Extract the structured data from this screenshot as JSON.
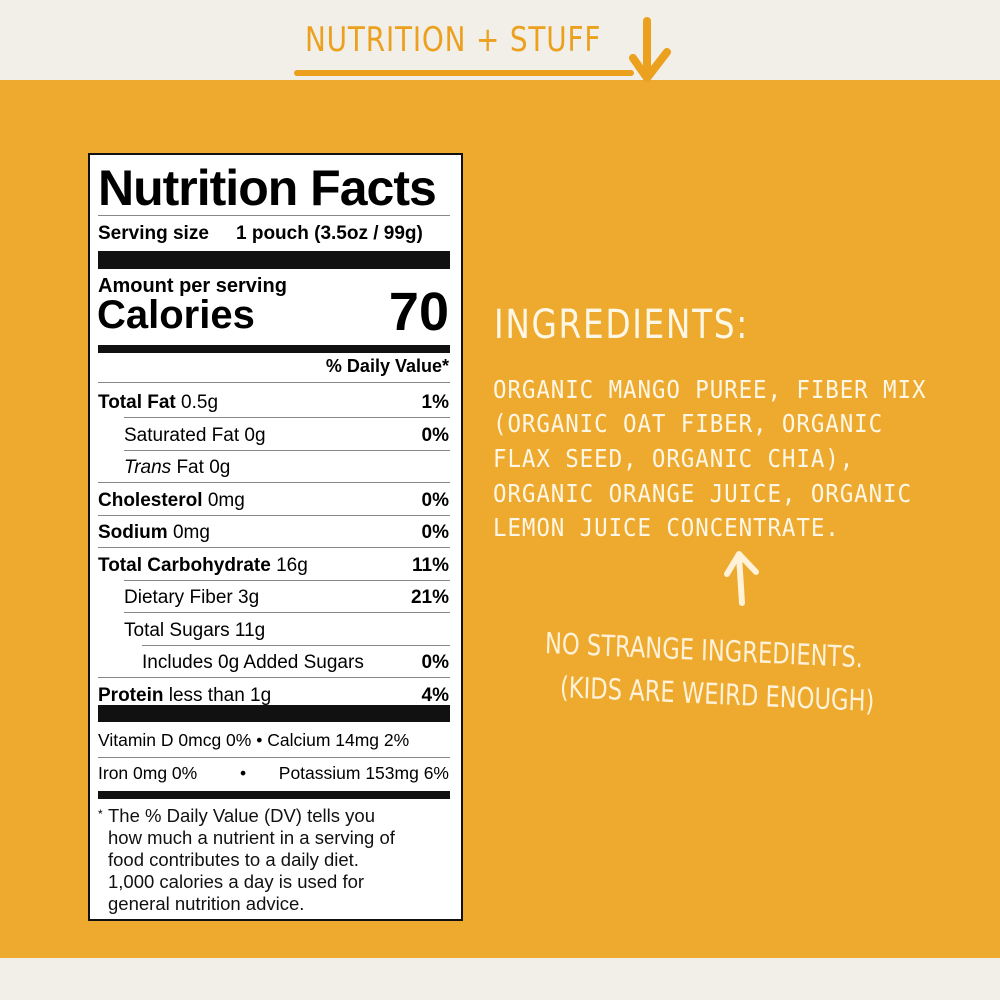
{
  "header": {
    "title": "NUTRITION + STUFF"
  },
  "colors": {
    "background": "#f2efe9",
    "panel": "#edaa2f",
    "accent": "#eba01e",
    "text_light": "#fff7e6"
  },
  "label": {
    "title": "Nutrition Facts",
    "serving_size_label": "Serving size",
    "serving_size_value": "1 pouch (3.5oz / 99g)",
    "amount_per_serving": "Amount per serving",
    "calories_label": "Calories",
    "calories_value": "70",
    "dv_header": "% Daily Value*",
    "rows": [
      {
        "name": "Total Fat",
        "amount": "0.5g",
        "dv": "1%"
      },
      {
        "name": "Saturated Fat",
        "amount": "0g",
        "dv": "0%"
      },
      {
        "name": "Trans",
        "name_suffix": "Fat",
        "amount": "0g",
        "dv": ""
      },
      {
        "name": "Cholesterol",
        "amount": "0mg",
        "dv": "0%"
      },
      {
        "name": "Sodium",
        "amount": "0mg",
        "dv": "0%"
      },
      {
        "name": "Total Carbohydrate",
        "amount": "16g",
        "dv": "11%"
      },
      {
        "name": "Dietary Fiber",
        "amount": "3g",
        "dv": "21%"
      },
      {
        "name": "Total Sugars",
        "amount": "11g",
        "dv": ""
      },
      {
        "name": "Includes 0g Added Sugars",
        "amount": "",
        "dv": "0%"
      },
      {
        "name": "Protein",
        "amount": "less than 1g",
        "dv": "4%"
      }
    ],
    "vitamins_line1": "Vitamin D 0mcg 0% • Calcium 14mg 2%",
    "vitamins_line2_left": "Iron 0mg 0%",
    "vitamins_line2_sep": "•",
    "vitamins_line2_right": "Potassium 153mg 6%",
    "footnote_star": "*",
    "footnote": [
      "The % Daily Value (DV) tells you",
      "how much a nutrient in a serving of",
      "food contributes to a daily diet.",
      "1,000 calories a day is used for",
      "general nutrition advice."
    ]
  },
  "ingredients": {
    "title": "INGREDIENTS:",
    "lines": [
      "ORGANIC MANGO PUREE, FIBER MIX",
      "(ORGANIC OAT FIBER, ORGANIC",
      "FLAX SEED, ORGANIC CHIA),",
      "ORGANIC ORANGE JUICE, ORGANIC",
      "LEMON JUICE CONCENTRATE."
    ]
  },
  "note": {
    "line1": "NO STRANGE INGREDIENTS.",
    "line2": "(KIDS ARE WEIRD ENOUGH)"
  }
}
